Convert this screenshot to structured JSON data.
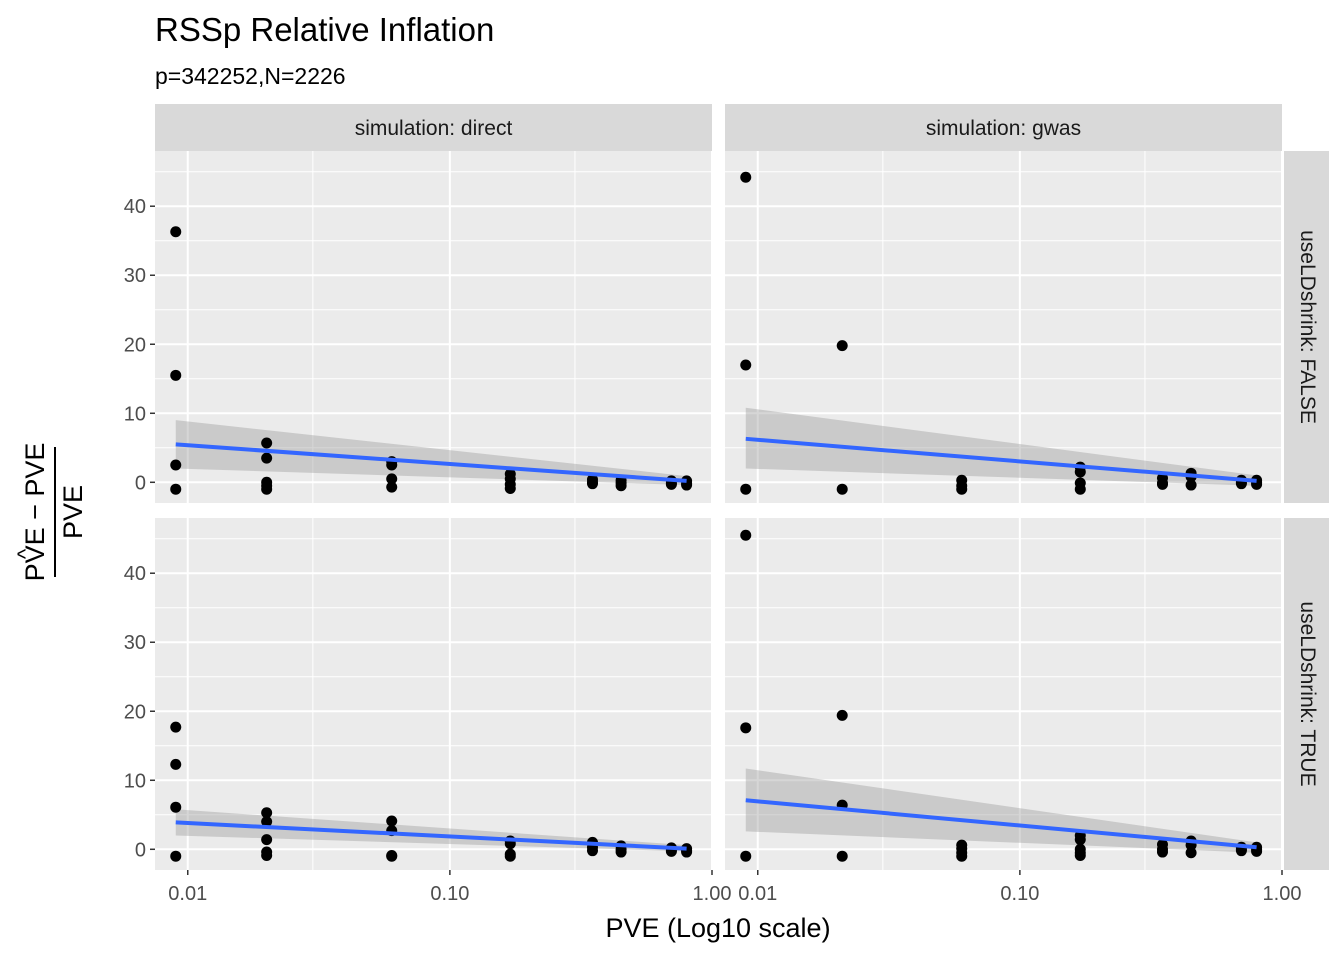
{
  "chart_data": {
    "type": "scatter",
    "title": "RSSp Relative Inflation",
    "subtitle": "p=342252,N=2226",
    "xlabel": "PVE (Log10 scale)",
    "ylabel": {
      "numerator": "PVE − PVE",
      "hat_symbol": "^",
      "denominator": "PVE"
    },
    "x_scale": "log10",
    "xlim": [
      0.0075,
      1.0
    ],
    "ylim": [
      -3,
      48
    ],
    "x_ticks": [
      0.01,
      0.1,
      1.0
    ],
    "x_tick_labels": [
      "0.01",
      "0.10",
      "1.00"
    ],
    "y_ticks": [
      0,
      10,
      20,
      30,
      40
    ],
    "y_tick_labels": [
      "0",
      "10",
      "20",
      "30",
      "40"
    ],
    "grid": true,
    "facet_columns": [
      "simulation: direct",
      "simulation: gwas"
    ],
    "facet_rows": [
      "useLDshrink: FALSE",
      "useLDshrink: TRUE"
    ],
    "colors": {
      "points": "#000000",
      "fit_line": "#3366FF",
      "confidence_band": "#999999",
      "panel_background": "#EBEBEB",
      "strip_background": "#D9D9D9",
      "grid": "#FFFFFF"
    },
    "panels": [
      {
        "row": 0,
        "col": 0,
        "points": [
          {
            "x": 0.009,
            "y": 36.3
          },
          {
            "x": 0.009,
            "y": 15.5
          },
          {
            "x": 0.009,
            "y": 2.5
          },
          {
            "x": 0.009,
            "y": -1.0
          },
          {
            "x": 0.02,
            "y": 5.7
          },
          {
            "x": 0.02,
            "y": 3.5
          },
          {
            "x": 0.02,
            "y": 0.0
          },
          {
            "x": 0.02,
            "y": -0.5
          },
          {
            "x": 0.02,
            "y": -1.0
          },
          {
            "x": 0.06,
            "y": 3.0
          },
          {
            "x": 0.06,
            "y": 2.5
          },
          {
            "x": 0.06,
            "y": 0.5
          },
          {
            "x": 0.06,
            "y": -0.7
          },
          {
            "x": 0.17,
            "y": 1.2
          },
          {
            "x": 0.17,
            "y": 0.5
          },
          {
            "x": 0.17,
            "y": -0.3
          },
          {
            "x": 0.17,
            "y": -0.9
          },
          {
            "x": 0.35,
            "y": 0.4
          },
          {
            "x": 0.35,
            "y": 0.0
          },
          {
            "x": 0.35,
            "y": -0.2
          },
          {
            "x": 0.45,
            "y": 0.3
          },
          {
            "x": 0.45,
            "y": -0.1
          },
          {
            "x": 0.45,
            "y": -0.5
          },
          {
            "x": 0.7,
            "y": 0.2
          },
          {
            "x": 0.7,
            "y": -0.1
          },
          {
            "x": 0.7,
            "y": -0.3
          },
          {
            "x": 0.8,
            "y": 0.2
          },
          {
            "x": 0.8,
            "y": -0.2
          },
          {
            "x": 0.8,
            "y": -0.4
          }
        ],
        "fit": {
          "x": [
            0.009,
            0.8
          ],
          "y": [
            5.5,
            0.2
          ],
          "lower": [
            2.0,
            -0.4
          ],
          "upper": [
            9.0,
            0.9
          ]
        }
      },
      {
        "row": 0,
        "col": 1,
        "points": [
          {
            "x": 0.009,
            "y": 44.2
          },
          {
            "x": 0.009,
            "y": 17.0
          },
          {
            "x": 0.009,
            "y": -1.0
          },
          {
            "x": 0.021,
            "y": 19.8
          },
          {
            "x": 0.021,
            "y": -1.0
          },
          {
            "x": 0.06,
            "y": 0.3
          },
          {
            "x": 0.06,
            "y": -0.5
          },
          {
            "x": 0.06,
            "y": -1.0
          },
          {
            "x": 0.17,
            "y": 2.2
          },
          {
            "x": 0.17,
            "y": 1.5
          },
          {
            "x": 0.17,
            "y": -0.1
          },
          {
            "x": 0.17,
            "y": -1.0
          },
          {
            "x": 0.35,
            "y": 0.6
          },
          {
            "x": 0.35,
            "y": -0.1
          },
          {
            "x": 0.35,
            "y": -0.3
          },
          {
            "x": 0.45,
            "y": 1.3
          },
          {
            "x": 0.45,
            "y": 0.8
          },
          {
            "x": 0.45,
            "y": -0.4
          },
          {
            "x": 0.7,
            "y": 0.3
          },
          {
            "x": 0.7,
            "y": 0.0
          },
          {
            "x": 0.7,
            "y": -0.2
          },
          {
            "x": 0.8,
            "y": 0.3
          },
          {
            "x": 0.8,
            "y": 0.0
          },
          {
            "x": 0.8,
            "y": -0.3
          }
        ],
        "fit": {
          "x": [
            0.009,
            0.8
          ],
          "y": [
            6.3,
            0.2
          ],
          "lower": [
            2.0,
            -0.5
          ],
          "upper": [
            10.8,
            1.0
          ]
        }
      },
      {
        "row": 1,
        "col": 0,
        "points": [
          {
            "x": 0.009,
            "y": 17.7
          },
          {
            "x": 0.009,
            "y": 12.3
          },
          {
            "x": 0.009,
            "y": 6.1
          },
          {
            "x": 0.009,
            "y": -1.0
          },
          {
            "x": 0.02,
            "y": 5.3
          },
          {
            "x": 0.02,
            "y": 4.0
          },
          {
            "x": 0.02,
            "y": 1.4
          },
          {
            "x": 0.02,
            "y": -0.4
          },
          {
            "x": 0.02,
            "y": -0.9
          },
          {
            "x": 0.06,
            "y": 4.1
          },
          {
            "x": 0.06,
            "y": 2.7
          },
          {
            "x": 0.06,
            "y": -0.9
          },
          {
            "x": 0.06,
            "y": -1.0
          },
          {
            "x": 0.17,
            "y": 1.2
          },
          {
            "x": 0.17,
            "y": 0.8
          },
          {
            "x": 0.17,
            "y": -0.7
          },
          {
            "x": 0.17,
            "y": -1.0
          },
          {
            "x": 0.35,
            "y": 1.0
          },
          {
            "x": 0.35,
            "y": 0.3
          },
          {
            "x": 0.35,
            "y": -0.2
          },
          {
            "x": 0.45,
            "y": 0.5
          },
          {
            "x": 0.45,
            "y": 0.0
          },
          {
            "x": 0.45,
            "y": -0.4
          },
          {
            "x": 0.7,
            "y": 0.2
          },
          {
            "x": 0.7,
            "y": -0.1
          },
          {
            "x": 0.7,
            "y": -0.3
          },
          {
            "x": 0.8,
            "y": 0.1
          },
          {
            "x": 0.8,
            "y": -0.2
          },
          {
            "x": 0.8,
            "y": -0.4
          }
        ],
        "fit": {
          "x": [
            0.009,
            0.8
          ],
          "y": [
            3.9,
            0.1
          ],
          "lower": [
            2.0,
            -0.3
          ],
          "upper": [
            5.8,
            0.6
          ]
        }
      },
      {
        "row": 1,
        "col": 1,
        "points": [
          {
            "x": 0.009,
            "y": 45.5
          },
          {
            "x": 0.009,
            "y": 17.6
          },
          {
            "x": 0.009,
            "y": -1.0
          },
          {
            "x": 0.021,
            "y": 19.4
          },
          {
            "x": 0.021,
            "y": 6.4
          },
          {
            "x": 0.021,
            "y": -1.0
          },
          {
            "x": 0.06,
            "y": 0.6
          },
          {
            "x": 0.06,
            "y": 0.1
          },
          {
            "x": 0.06,
            "y": -0.5
          },
          {
            "x": 0.06,
            "y": -1.0
          },
          {
            "x": 0.17,
            "y": 2.0
          },
          {
            "x": 0.17,
            "y": 1.4
          },
          {
            "x": 0.17,
            "y": 0.0
          },
          {
            "x": 0.17,
            "y": -0.5
          },
          {
            "x": 0.17,
            "y": -0.9
          },
          {
            "x": 0.35,
            "y": 0.7
          },
          {
            "x": 0.35,
            "y": 0.0
          },
          {
            "x": 0.35,
            "y": -0.4
          },
          {
            "x": 0.45,
            "y": 1.2
          },
          {
            "x": 0.45,
            "y": 0.6
          },
          {
            "x": 0.45,
            "y": -0.5
          },
          {
            "x": 0.7,
            "y": 0.3
          },
          {
            "x": 0.7,
            "y": 0.0
          },
          {
            "x": 0.7,
            "y": -0.2
          },
          {
            "x": 0.8,
            "y": 0.3
          },
          {
            "x": 0.8,
            "y": 0.0
          },
          {
            "x": 0.8,
            "y": -0.3
          }
        ],
        "fit": {
          "x": [
            0.009,
            0.8
          ],
          "y": [
            7.1,
            0.3
          ],
          "lower": [
            2.6,
            -0.5
          ],
          "upper": [
            11.7,
            1.0
          ]
        }
      }
    ]
  }
}
